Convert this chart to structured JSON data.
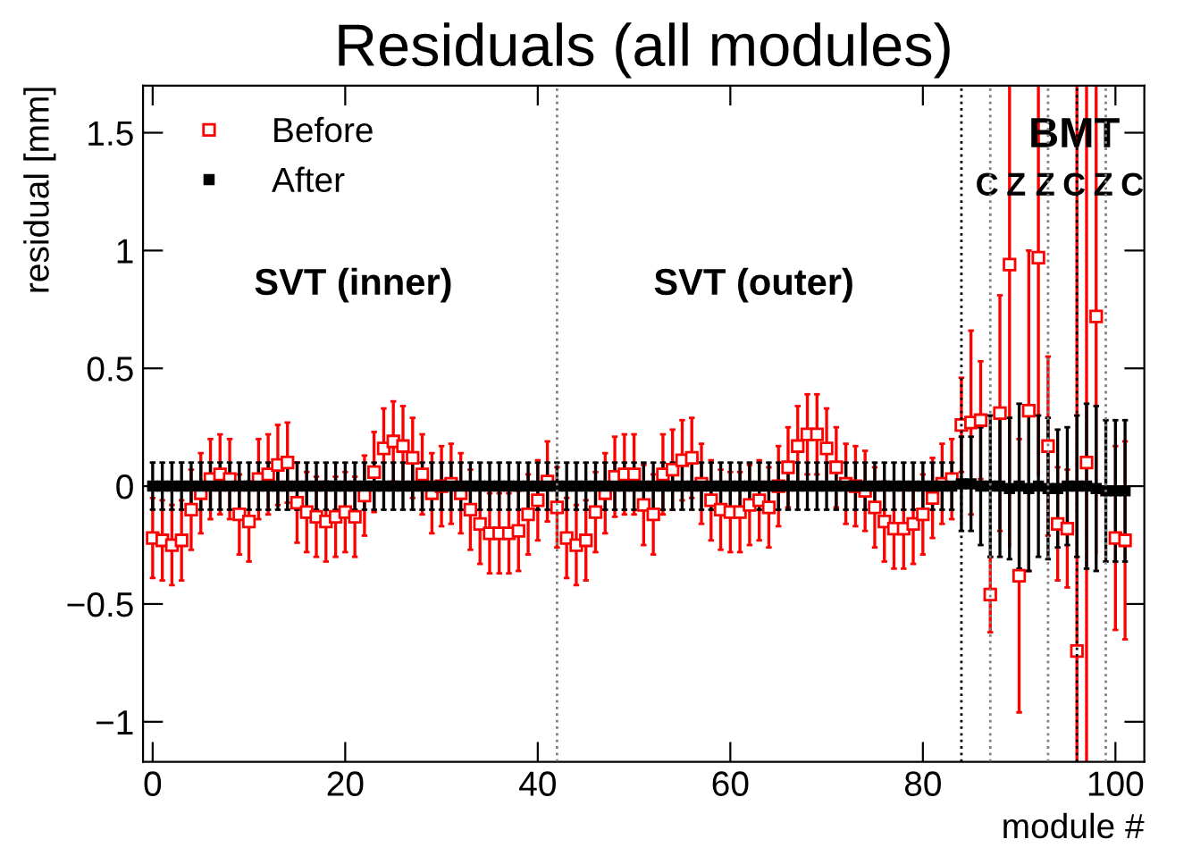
{
  "chart_data": {
    "type": "scatter",
    "title": "Residuals (all modules)",
    "xlabel": "module #",
    "ylabel": "residual [mm]",
    "x": [
      0,
      1,
      2,
      3,
      4,
      5,
      6,
      7,
      8,
      9,
      10,
      11,
      12,
      13,
      14,
      15,
      16,
      17,
      18,
      19,
      20,
      21,
      22,
      23,
      24,
      25,
      26,
      27,
      28,
      29,
      30,
      31,
      32,
      33,
      34,
      35,
      36,
      37,
      38,
      39,
      40,
      41,
      42,
      43,
      44,
      45,
      46,
      47,
      48,
      49,
      50,
      51,
      52,
      53,
      54,
      55,
      56,
      57,
      58,
      59,
      60,
      61,
      62,
      63,
      64,
      65,
      66,
      67,
      68,
      69,
      70,
      71,
      72,
      73,
      74,
      75,
      76,
      77,
      78,
      79,
      80,
      81,
      82,
      83,
      84,
      85,
      86,
      87,
      88,
      89,
      90,
      91,
      92,
      93,
      94,
      95,
      96,
      97,
      98,
      99,
      100,
      101
    ],
    "series": [
      {
        "name": "Before",
        "color": "#ff0000",
        "marker": "square",
        "values": [
          -0.22,
          -0.23,
          -0.25,
          -0.23,
          -0.1,
          -0.03,
          0.03,
          0.05,
          0.03,
          -0.12,
          -0.15,
          0.03,
          0.05,
          0.09,
          0.1,
          -0.07,
          -0.11,
          -0.13,
          -0.15,
          -0.13,
          -0.11,
          -0.13,
          -0.04,
          0.06,
          0.16,
          0.19,
          0.17,
          0.12,
          0.05,
          -0.03,
          0.0,
          0.01,
          -0.03,
          -0.1,
          -0.16,
          -0.2,
          -0.2,
          -0.2,
          -0.19,
          -0.12,
          -0.06,
          0.02,
          -0.09,
          -0.22,
          -0.25,
          -0.23,
          -0.11,
          -0.03,
          0.04,
          0.05,
          0.05,
          -0.08,
          -0.12,
          0.05,
          0.07,
          0.11,
          0.12,
          0.01,
          -0.06,
          -0.1,
          -0.11,
          -0.11,
          -0.08,
          -0.06,
          -0.09,
          0.0,
          0.08,
          0.17,
          0.22,
          0.22,
          0.16,
          0.08,
          0.01,
          0.0,
          -0.02,
          -0.09,
          -0.15,
          -0.18,
          -0.18,
          -0.16,
          -0.12,
          -0.05,
          0.01,
          0.03,
          0.26,
          0.27,
          0.28,
          -0.46,
          0.31,
          0.94,
          -0.38,
          0.32,
          0.97,
          0.17,
          -0.16,
          -0.18,
          -0.7,
          0.1,
          0.72,
          null,
          -0.22,
          -0.23
        ],
        "errors": [
          0.17,
          0.17,
          0.17,
          0.17,
          0.17,
          0.17,
          0.17,
          0.17,
          0.17,
          0.17,
          0.17,
          0.17,
          0.17,
          0.17,
          0.17,
          0.17,
          0.17,
          0.17,
          0.17,
          0.17,
          0.17,
          0.17,
          0.17,
          0.17,
          0.17,
          0.17,
          0.17,
          0.17,
          0.17,
          0.17,
          0.17,
          0.17,
          0.17,
          0.17,
          0.17,
          0.17,
          0.17,
          0.17,
          0.17,
          0.17,
          0.17,
          0.17,
          0.17,
          0.17,
          0.17,
          0.17,
          0.17,
          0.17,
          0.17,
          0.17,
          0.17,
          0.17,
          0.17,
          0.17,
          0.17,
          0.17,
          0.17,
          0.17,
          0.17,
          0.17,
          0.17,
          0.17,
          0.17,
          0.17,
          0.17,
          0.17,
          0.17,
          0.17,
          0.17,
          0.17,
          0.17,
          0.17,
          0.17,
          0.17,
          0.17,
          0.17,
          0.17,
          0.17,
          0.17,
          0.17,
          0.17,
          0.17,
          0.17,
          0.17,
          0.2,
          0.39,
          0.25,
          0.16,
          0.5,
          [
            -0.26,
            1.7
          ],
          0.58,
          0.68,
          [
            0.04,
            1.7
          ],
          0.38,
          0.24,
          0.25,
          [
            -1.17,
            1.7
          ],
          [
            -1.17,
            1.7
          ],
          [
            -0.29,
            1.7
          ],
          null,
          0.39,
          0.42
        ]
      },
      {
        "name": "After",
        "color": "#000000",
        "marker": "square",
        "values": [
          0,
          0,
          0,
          0,
          0,
          0,
          0,
          0,
          0,
          0,
          0,
          0,
          0,
          0,
          0,
          0,
          0,
          0,
          0,
          0,
          0,
          0,
          0,
          0,
          0,
          0,
          0,
          0,
          0,
          0,
          0,
          0,
          0,
          0,
          0,
          0,
          0,
          0,
          0,
          0,
          0,
          0,
          0,
          0,
          0,
          0,
          0,
          0,
          0,
          0,
          0,
          0,
          0,
          0,
          0,
          0,
          0,
          0,
          0,
          0,
          0,
          0,
          0,
          0,
          0,
          0,
          0,
          0,
          0,
          0,
          0,
          0,
          0,
          0,
          0,
          0,
          0,
          0,
          0,
          0,
          0,
          0,
          0,
          0,
          0.01,
          0.01,
          0.0,
          0.0,
          0.0,
          -0.01,
          0.0,
          -0.01,
          0.0,
          -0.01,
          -0.01,
          0.0,
          0.0,
          0.0,
          -0.01,
          -0.02,
          -0.02,
          -0.02
        ],
        "errors": [
          0.1,
          0.1,
          0.1,
          0.1,
          0.1,
          0.1,
          0.1,
          0.1,
          0.1,
          0.1,
          0.1,
          0.1,
          0.1,
          0.1,
          0.1,
          0.1,
          0.1,
          0.1,
          0.1,
          0.1,
          0.1,
          0.1,
          0.1,
          0.1,
          0.1,
          0.1,
          0.1,
          0.1,
          0.1,
          0.1,
          0.1,
          0.1,
          0.1,
          0.1,
          0.1,
          0.1,
          0.1,
          0.1,
          0.1,
          0.1,
          0.1,
          0.1,
          0.1,
          0.1,
          0.1,
          0.1,
          0.1,
          0.1,
          0.1,
          0.1,
          0.1,
          0.1,
          0.1,
          0.1,
          0.1,
          0.1,
          0.1,
          0.1,
          0.1,
          0.1,
          0.1,
          0.1,
          0.1,
          0.1,
          0.1,
          0.1,
          0.1,
          0.1,
          0.1,
          0.1,
          0.1,
          0.1,
          0.1,
          0.1,
          0.1,
          0.1,
          0.1,
          0.1,
          0.1,
          0.1,
          0.1,
          0.1,
          0.1,
          0.1,
          0.2,
          0.2,
          0.25,
          0.3,
          0.3,
          0.3,
          0.35,
          0.35,
          0.3,
          0.3,
          0.25,
          0.25,
          0.3,
          0.35,
          0.35,
          0.3,
          0.3,
          0.3
        ]
      }
    ],
    "xlim": [
      -1,
      103
    ],
    "ylim": [
      -1.17,
      1.7
    ],
    "xticks": [
      0,
      20,
      40,
      60,
      80,
      100
    ],
    "yticks": [
      {
        "value": -1,
        "label": "−1"
      },
      {
        "value": -0.5,
        "label": "−0.5"
      },
      0,
      0.5,
      1,
      1.5
    ],
    "ref_lines": [
      {
        "axis": "x",
        "value": 42,
        "color": "#808080",
        "line_style": "dotted"
      },
      {
        "axis": "x",
        "value": 84,
        "color": "#000000",
        "line_style": "dotted"
      },
      {
        "axis": "x",
        "value": 87,
        "color": "#808080",
        "line_style": "dotted"
      },
      {
        "axis": "x",
        "value": 93,
        "color": "#808080",
        "line_style": "dotted"
      },
      {
        "axis": "x",
        "value": 96,
        "color": "#000000",
        "line_style": "dotted"
      },
      {
        "axis": "x",
        "value": 99,
        "color": "#808080",
        "line_style": "dotted"
      }
    ],
    "annotations": [
      "SVT (inner)",
      "SVT (outer)",
      "BMT",
      "C",
      "Z",
      "Z",
      "C",
      "Z",
      "C"
    ],
    "legend": "top left",
    "grid": false
  }
}
